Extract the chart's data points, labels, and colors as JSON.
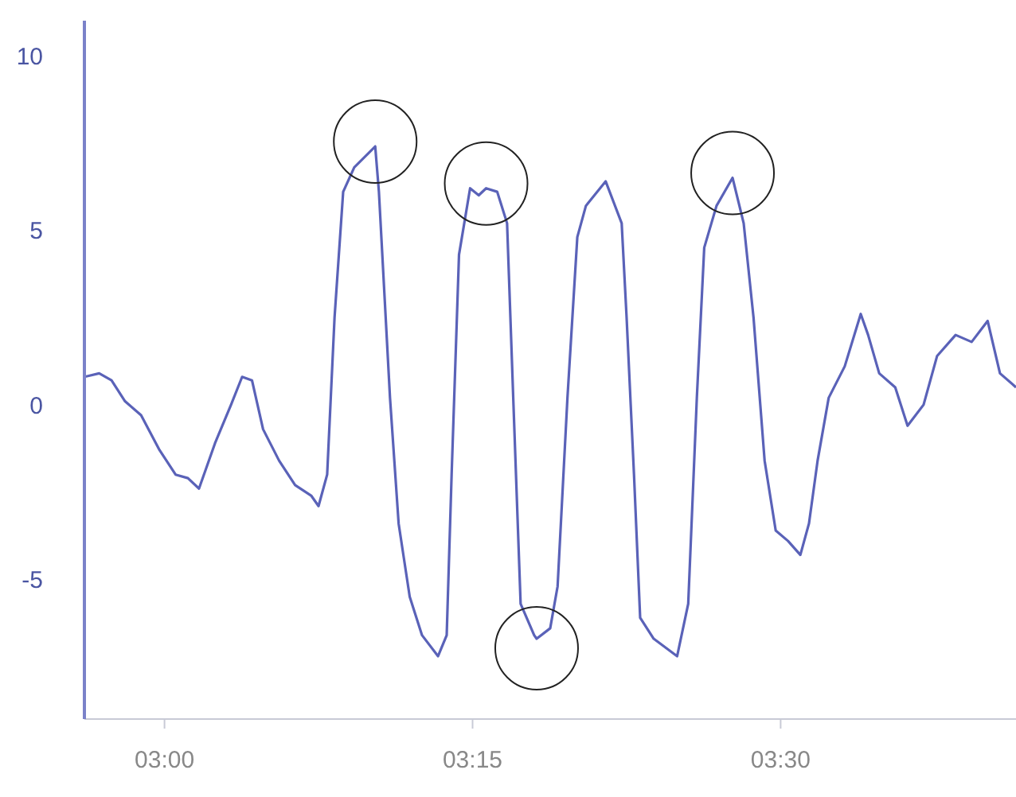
{
  "chart_data": {
    "type": "line",
    "x": [
      2.935,
      2.947,
      2.957,
      2.968,
      2.981,
      2.996,
      3.009,
      3.019,
      3.028,
      3.041,
      3.054,
      3.063,
      3.071,
      3.08,
      3.093,
      3.106,
      3.119,
      3.125,
      3.132,
      3.138,
      3.145,
      3.154,
      3.171,
      3.174,
      3.183,
      3.19,
      3.199,
      3.209,
      3.222,
      3.229,
      3.233,
      3.239,
      3.248,
      3.255,
      3.261,
      3.27,
      3.278,
      3.283,
      3.289,
      3.3,
      3.302,
      3.313,
      3.319,
      3.327,
      3.335,
      3.342,
      3.358,
      3.371,
      3.375,
      3.381,
      3.386,
      3.397,
      3.416,
      3.425,
      3.432,
      3.438,
      3.448,
      3.461,
      3.47,
      3.478,
      3.487,
      3.496,
      3.506,
      3.516,
      3.523,
      3.53,
      3.539,
      3.552,
      3.565,
      3.571,
      3.58,
      3.593,
      3.603,
      3.616,
      3.627,
      3.642,
      3.655,
      3.668,
      3.678,
      3.691
    ],
    "series": [
      {
        "color": "#5a62b8",
        "values": [
          0.8,
          0.9,
          0.7,
          0.1,
          -0.3,
          -1.3,
          -2.0,
          -2.1,
          -2.4,
          -1.1,
          0,
          0.8,
          0.7,
          -0.7,
          -1.6,
          -2.3,
          -2.6,
          -2.9,
          -2.0,
          2.5,
          6.1,
          6.8,
          7.4,
          6.1,
          0.2,
          -3.4,
          -5.5,
          -6.6,
          -7.2,
          -6.6,
          -2.0,
          4.3,
          6.2,
          6.0,
          6.2,
          6.1,
          5.2,
          0.2,
          -5.7,
          -6.6,
          -6.7,
          -6.4,
          -5.2,
          0.2,
          4.8,
          5.7,
          6.4,
          5.2,
          2.5,
          -2.0,
          -6.1,
          -6.7,
          -7.2,
          -5.7,
          0.2,
          4.5,
          5.7,
          6.5,
          5.2,
          2.5,
          -1.6,
          -3.6,
          -3.9,
          -4.3,
          -3.4,
          -1.6,
          0.2,
          1.1,
          2.6,
          2.0,
          0.9,
          0.5,
          -0.6,
          0,
          1.4,
          2.0,
          1.8,
          2.4,
          0.9,
          0.5
        ]
      }
    ],
    "xlim": [
      2.935,
      3.691
    ],
    "xticks": [
      {
        "value": 3,
        "label": "03:00"
      },
      {
        "value": 3.25,
        "label": "03:15"
      },
      {
        "value": 3.5,
        "label": "03:30"
      }
    ],
    "ylim": [
      -9,
      11
    ],
    "yticks": [
      -5,
      0,
      5,
      10
    ],
    "grid": false,
    "legend": false,
    "marker": "none",
    "line_style": "solid"
  }
}
